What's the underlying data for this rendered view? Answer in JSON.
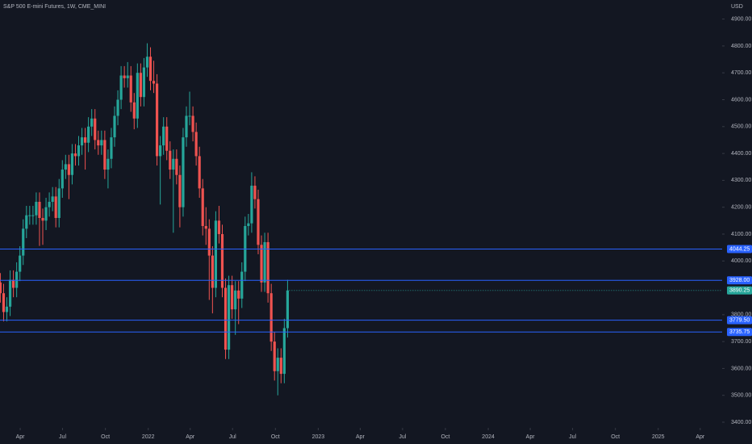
{
  "chart_data": {
    "type": "candlestick",
    "title": "S&P 500 E-mini Futures, 1W, CME_MINI",
    "currency": "USD",
    "up_color": "#26a69a",
    "down_color": "#ef5350",
    "xlim": [
      2021.128,
      2025.376
    ],
    "xticks": [
      {
        "value": 2021.247,
        "label": "Apr"
      },
      {
        "value": 2021.496,
        "label": "Jul"
      },
      {
        "value": 2021.748,
        "label": "Oct"
      },
      {
        "value": 2022.0,
        "label": "2022"
      },
      {
        "value": 2022.247,
        "label": "Apr"
      },
      {
        "value": 2022.496,
        "label": "Jul"
      },
      {
        "value": 2022.748,
        "label": "Oct"
      },
      {
        "value": 2023.0,
        "label": "2023"
      },
      {
        "value": 2023.247,
        "label": "Apr"
      },
      {
        "value": 2023.496,
        "label": "Jul"
      },
      {
        "value": 2023.748,
        "label": "Oct"
      },
      {
        "value": 2024.0,
        "label": "2024"
      },
      {
        "value": 2024.247,
        "label": "Apr"
      },
      {
        "value": 2024.496,
        "label": "Jul"
      },
      {
        "value": 2024.748,
        "label": "Oct"
      },
      {
        "value": 2025.0,
        "label": "2025"
      },
      {
        "value": 2025.247,
        "label": "Apr"
      }
    ],
    "ylim": [
      3379,
      4971
    ],
    "yticks": [
      {
        "value": 4900,
        "label": "4900.00"
      },
      {
        "value": 4800,
        "label": "4800.00"
      },
      {
        "value": 4700,
        "label": "4700.00"
      },
      {
        "value": 4600,
        "label": "4600.00"
      },
      {
        "value": 4500,
        "label": "4500.00"
      },
      {
        "value": 4400,
        "label": "4400.00"
      },
      {
        "value": 4300,
        "label": "4300.00"
      },
      {
        "value": 4200,
        "label": "4200.00"
      },
      {
        "value": 4100,
        "label": "4100.00"
      },
      {
        "value": 4000,
        "label": "4000.00"
      },
      {
        "value": 3800,
        "label": "3800.00"
      },
      {
        "value": 3700,
        "label": "3700.00"
      },
      {
        "value": 3600,
        "label": "3600.00"
      },
      {
        "value": 3500,
        "label": "3500.00"
      },
      {
        "value": 3400,
        "label": "3400.00"
      }
    ],
    "levels": {
      "color": "#2962ff",
      "values": [
        4044.25,
        3928,
        3779.5,
        3735.75
      ],
      "value_labels": [
        "4044.25",
        "3928.00",
        "3779.50",
        "3735.75"
      ]
    },
    "x": [
      2021.13,
      2021.1492,
      2021.1684,
      2021.1876,
      2021.2068,
      2021.226,
      2021.2452,
      2021.2644,
      2021.2836,
      2021.3028,
      2021.322,
      2021.3412,
      2021.3604,
      2021.3796,
      2021.3988,
      2021.418,
      2021.4372,
      2021.4564,
      2021.4756,
      2021.4948,
      2021.514,
      2021.5332,
      2021.5524,
      2021.5716,
      2021.5908,
      2021.61,
      2021.6292,
      2021.6484,
      2021.6676,
      2021.6868,
      2021.706,
      2021.7252,
      2021.7444,
      2021.7636,
      2021.7828,
      2021.802,
      2021.8212,
      2021.8404,
      2021.8596,
      2021.8788,
      2021.898,
      2021.9172,
      2021.9364,
      2021.9556,
      2021.9748,
      2021.994,
      2022.0132,
      2022.0324,
      2022.0516,
      2022.0708,
      2022.09,
      2022.1092,
      2022.1284,
      2022.1476,
      2022.1668,
      2022.186,
      2022.2052,
      2022.2244,
      2022.2436,
      2022.2628,
      2022.282,
      2022.3012,
      2022.3204,
      2022.3396,
      2022.3588,
      2022.378,
      2022.3972,
      2022.4164,
      2022.4356,
      2022.4548,
      2022.474,
      2022.4932,
      2022.5124,
      2022.5316,
      2022.5508,
      2022.57,
      2022.5892,
      2022.6084,
      2022.6276,
      2022.6468,
      2022.666,
      2022.6852,
      2022.7044,
      2022.7236,
      2022.7428,
      2022.762,
      2022.7812,
      2022.8004,
      2022.8196
    ],
    "open": [
      3920,
      3880,
      3810,
      3830,
      3930,
      3900,
      3960,
      4020,
      4120,
      4170,
      4170,
      4170,
      4220,
      4160,
      4150,
      4200,
      4220,
      4240,
      4160,
      4270,
      4340,
      4360,
      4320,
      4400,
      4390,
      4430,
      4460,
      4440,
      4500,
      4530,
      4450,
      4430,
      4450,
      4340,
      4380,
      4460,
      4540,
      4600,
      4690,
      4680,
      4690,
      4590,
      4530,
      4700,
      4610,
      4720,
      4760,
      4670,
      4660,
      4390,
      4430,
      4500,
      4410,
      4340,
      4380,
      4320,
      4200,
      4460,
      4540,
      4540,
      4480,
      4390,
      4270,
      4130,
      4120,
      4020,
      3900,
      4150,
      4100,
      3900,
      3670,
      3910,
      3820,
      3890,
      3860,
      3960,
      4130,
      4140,
      4280,
      4230,
      4060,
      3920,
      4070,
      3880,
      3700,
      3590,
      3640,
      3580,
      3750
    ],
    "high": [
      3955,
      3915,
      3865,
      3965,
      3965,
      3995,
      4055,
      4155,
      4205,
      4205,
      4205,
      4255,
      4255,
      4195,
      4235,
      4255,
      4275,
      4275,
      4305,
      4375,
      4395,
      4395,
      4435,
      4435,
      4465,
      4495,
      4495,
      4535,
      4565,
      4565,
      4485,
      4485,
      4485,
      4415,
      4495,
      4575,
      4635,
      4725,
      4725,
      4740,
      4725,
      4625,
      4735,
      4735,
      4755,
      4810,
      4795,
      4745,
      4695,
      4465,
      4535,
      4535,
      4445,
      4415,
      4415,
      4355,
      4495,
      4575,
      4630,
      4575,
      4515,
      4425,
      4305,
      4200,
      4155,
      4055,
      4185,
      4205,
      4135,
      3935,
      3945,
      3945,
      3925,
      3925,
      3995,
      4165,
      4175,
      4330,
      4315,
      4265,
      4095,
      4105,
      4105,
      3915,
      3735,
      3675,
      3675,
      3785,
      3930
    ],
    "low": [
      3845,
      3775,
      3775,
      3795,
      3865,
      3865,
      3925,
      3985,
      4085,
      4135,
      4135,
      4135,
      4056,
      4060,
      4115,
      4165,
      4185,
      4125,
      4125,
      4235,
      4305,
      4230,
      4285,
      4355,
      4355,
      4395,
      4340,
      4405,
      4465,
      4415,
      4395,
      4395,
      4305,
      4270,
      4345,
      4425,
      4505,
      4565,
      4645,
      4645,
      4555,
      4490,
      4495,
      4575,
      4575,
      4685,
      4635,
      4625,
      4355,
      4210,
      4395,
      4375,
      4305,
      4105,
      4285,
      4125,
      4165,
      4425,
      4505,
      4445,
      4355,
      4235,
      4095,
      4060,
      3855,
      3805,
      3865,
      4065,
      3865,
      3635,
      3635,
      3785,
      3725,
      3765,
      3825,
      3925,
      4095,
      4105,
      4195,
      4025,
      3885,
      3885,
      3845,
      3665,
      3555,
      3500,
      3545,
      3545,
      3715
    ],
    "close": [
      3880,
      3810,
      3830,
      3930,
      3900,
      3960,
      4020,
      4120,
      4170,
      4170,
      4170,
      4220,
      4160,
      4150,
      4200,
      4220,
      4240,
      4160,
      4270,
      4340,
      4360,
      4320,
      4400,
      4390,
      4430,
      4460,
      4440,
      4500,
      4530,
      4450,
      4430,
      4450,
      4340,
      4380,
      4460,
      4540,
      4600,
      4690,
      4680,
      4690,
      4590,
      4530,
      4700,
      4610,
      4720,
      4760,
      4670,
      4660,
      4390,
      4430,
      4500,
      4410,
      4340,
      4380,
      4320,
      4200,
      4460,
      4540,
      4540,
      4480,
      4390,
      4270,
      4130,
      4120,
      4020,
      3900,
      4150,
      4100,
      3900,
      3670,
      3910,
      3820,
      3890,
      3860,
      3960,
      4130,
      4140,
      4280,
      4230,
      4060,
      3920,
      4070,
      3880,
      3700,
      3590,
      3640,
      3580,
      3750,
      3890.25
    ]
  }
}
